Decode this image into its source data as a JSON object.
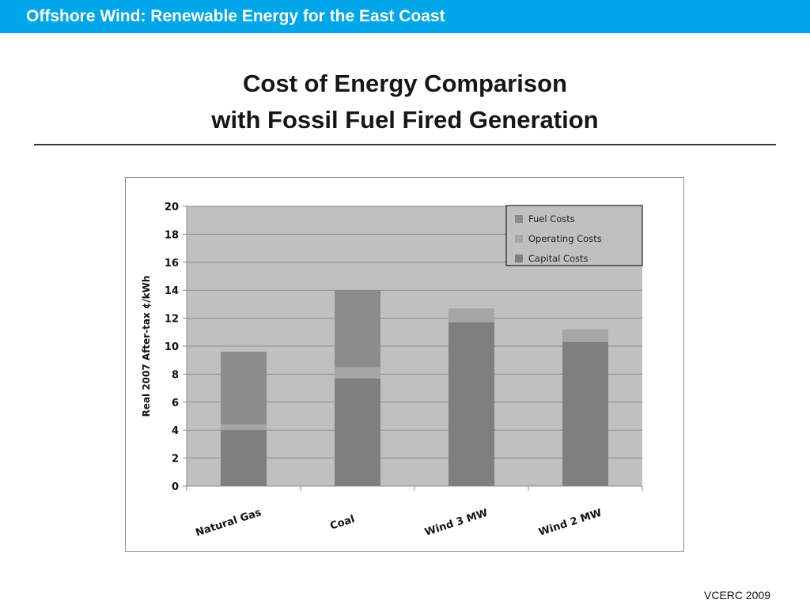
{
  "header": {
    "title": "Offshore Wind: Renewable Energy for the East Coast",
    "bar_color": "#00a7e8"
  },
  "slide": {
    "title_line_1": "Cost of Energy Comparison",
    "title_line_2": "with Fossil Fuel Fired Generation"
  },
  "footer": {
    "credit": "VCERC 2009"
  },
  "chart_data": {
    "type": "bar",
    "stacked": true,
    "title": "",
    "xlabel": "",
    "ylabel": "Real 2007 After-tax ¢/kWh",
    "ylim": [
      0,
      20
    ],
    "yticks": [
      0,
      2,
      4,
      6,
      8,
      10,
      12,
      14,
      16,
      18,
      20
    ],
    "grid": true,
    "legend_position": "top-right",
    "categories": [
      "Natural Gas",
      "Coal",
      "Wind 3 MW",
      "Wind 2 MW"
    ],
    "series": [
      {
        "name": "Capital Costs",
        "values": [
          4.0,
          7.7,
          11.7,
          10.3
        ],
        "color": "#7f7f7f"
      },
      {
        "name": "Operating Costs",
        "values": [
          0.4,
          0.8,
          1.0,
          0.9
        ],
        "color": "#a6a6a6"
      },
      {
        "name": "Fuel Costs",
        "values": [
          5.2,
          5.5,
          0,
          0
        ],
        "color": "#8c8c8c"
      }
    ],
    "legend_order": [
      "Fuel Costs",
      "Operating Costs",
      "Capital Costs"
    ]
  }
}
